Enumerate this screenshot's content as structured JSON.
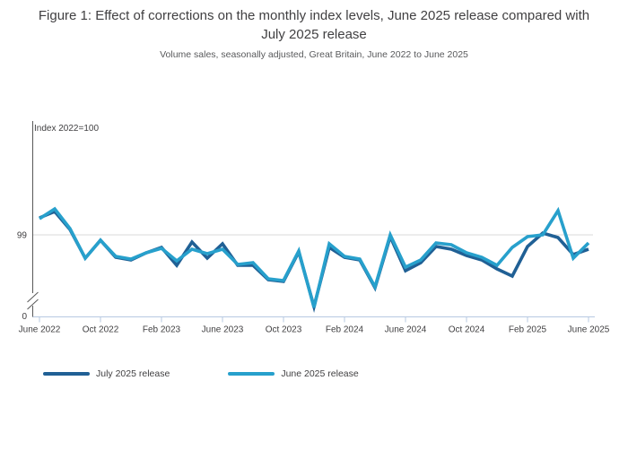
{
  "figure": {
    "title": "Figure 1: Effect of corrections on the monthly index levels, June 2025 release compared with July 2025 release",
    "subtitle": "Volume sales, seasonally adjusted, Great Britain, June 2022 to June 2025"
  },
  "colors": {
    "july_release_line": "#206095",
    "june_release_line": "#27a0cc",
    "gridline": "#d9d9d9",
    "y_axis": "#595959",
    "x_axis": "#b7c9e2",
    "text": "#414042"
  },
  "legend": {
    "items": [
      {
        "label": "July 2025 release",
        "color": "#206095"
      },
      {
        "label": "June 2025 release",
        "color": "#27a0cc"
      }
    ]
  },
  "chart_data": {
    "type": "line",
    "title": "Figure 1: Effect of corrections on the monthly index levels, June 2025 release compared with July 2025 release",
    "subtitle": "Volume sales, seasonally adjusted, Great Britain, June 2022 to June 2025",
    "y_axis_label": "Index 2022=100",
    "y_ticks": [
      "0",
      "99"
    ],
    "y_axis_break": true,
    "grid_value": 99,
    "ylim_visible": [
      95,
      101.5
    ],
    "legend_position": "bottom-left",
    "x": [
      "Jun 2022",
      "Jul 2022",
      "Aug 2022",
      "Sep 2022",
      "Oct 2022",
      "Nov 2022",
      "Dec 2022",
      "Jan 2023",
      "Feb 2023",
      "Mar 2023",
      "Apr 2023",
      "May 2023",
      "Jun 2023",
      "Jul 2023",
      "Aug 2023",
      "Sep 2023",
      "Oct 2023",
      "Nov 2023",
      "Dec 2023",
      "Jan 2024",
      "Feb 2024",
      "Mar 2024",
      "Apr 2024",
      "May 2024",
      "Jun 2024",
      "Jul 2024",
      "Aug 2024",
      "Sep 2024",
      "Oct 2024",
      "Nov 2024",
      "Dec 2024",
      "Jan 2025",
      "Feb 2025",
      "Mar 2025",
      "Apr 2025",
      "May 2025",
      "Jun 2025"
    ],
    "x_tick_labels": [
      "June 2022",
      "Oct 2022",
      "Feb 2023",
      "June 2023",
      "Oct 2023",
      "Feb 2024",
      "June 2024",
      "Oct 2024",
      "Feb 2025",
      "June 2025"
    ],
    "x_tick_indices": [
      0,
      4,
      8,
      12,
      16,
      20,
      24,
      28,
      32,
      36
    ],
    "series": [
      {
        "name": "July 2025 release",
        "color": "#206095",
        "values": [
          99.95,
          100.3,
          99.3,
          97.7,
          98.7,
          97.75,
          97.6,
          98.0,
          98.3,
          97.3,
          98.6,
          97.7,
          98.5,
          97.3,
          97.3,
          96.5,
          96.4,
          98.05,
          95.0,
          98.3,
          97.75,
          97.6,
          96.05,
          98.9,
          97.0,
          97.45,
          98.35,
          98.2,
          97.85,
          97.6,
          97.1,
          96.7,
          98.35,
          99.1,
          98.85,
          97.9,
          98.2
        ]
      },
      {
        "name": "June 2025 release",
        "color": "#27a0cc",
        "values": [
          99.9,
          100.45,
          99.35,
          97.7,
          98.7,
          97.8,
          97.65,
          98.0,
          98.25,
          97.55,
          98.2,
          97.95,
          98.2,
          97.35,
          97.45,
          96.55,
          96.45,
          98.1,
          94.95,
          98.5,
          97.8,
          97.65,
          96.1,
          99.0,
          97.2,
          97.6,
          98.55,
          98.45,
          98.0,
          97.75,
          97.3,
          98.3,
          98.9,
          99.0,
          100.35,
          97.7,
          98.55
        ]
      }
    ]
  }
}
